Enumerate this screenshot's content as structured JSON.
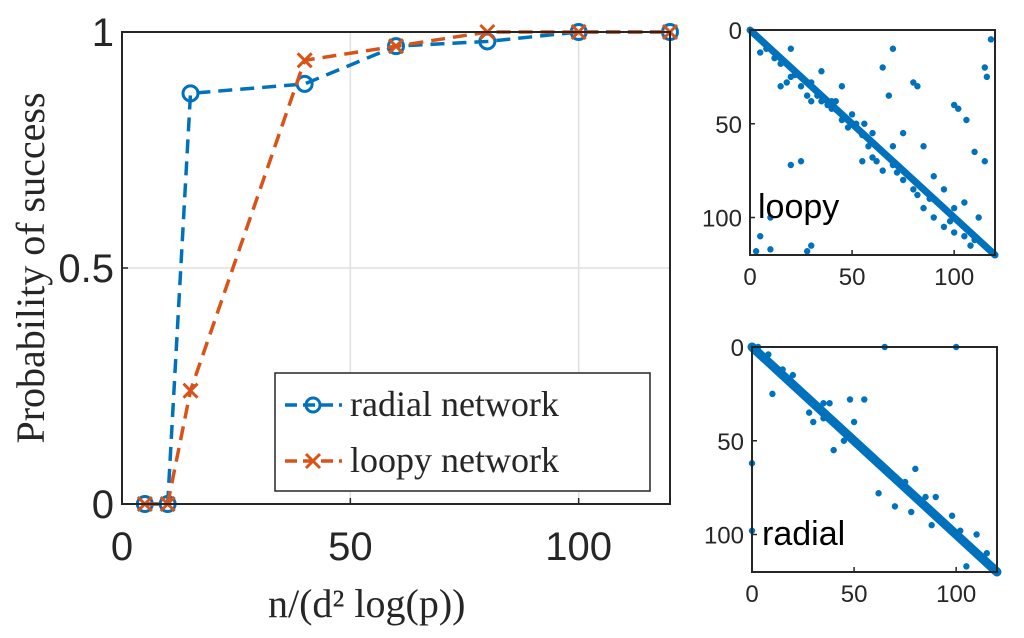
{
  "chart_data": [
    {
      "id": "main",
      "type": "line",
      "xlabel": "n/(d² log(p))",
      "ylabel": "Probability of success",
      "xlim": [
        0,
        120
      ],
      "ylim": [
        0,
        1
      ],
      "xticks": [
        0,
        50,
        100
      ],
      "yticks": [
        0,
        0.5,
        1
      ],
      "xtick_labels": [
        "0",
        "50",
        "100"
      ],
      "ytick_labels": [
        "0",
        "0.5",
        "1"
      ],
      "grid": true,
      "legend_position": "bottom-right",
      "series": [
        {
          "name": "radial network",
          "color": "#0072BD",
          "marker": "circle",
          "line_style": "dashed",
          "x": [
            5,
            10,
            15,
            40,
            60,
            80,
            100,
            120
          ],
          "y": [
            0,
            0,
            0.87,
            0.89,
            0.97,
            0.98,
            1.0,
            1.0
          ]
        },
        {
          "name": "loopy network",
          "color": "#D95319",
          "marker": "x",
          "line_style": "dashed",
          "x": [
            5,
            10,
            15,
            40,
            60,
            80,
            100,
            120
          ],
          "y": [
            0,
            0,
            0.24,
            0.94,
            0.97,
            1.0,
            1.0,
            1.0
          ]
        }
      ]
    },
    {
      "id": "loopy-spy",
      "type": "scatter",
      "annotation": "loopy",
      "color": "#0072BD",
      "xlim": [
        0,
        120
      ],
      "ylim": [
        120,
        0
      ],
      "xticks": [
        0,
        50,
        100
      ],
      "yticks": [
        0,
        50,
        100
      ],
      "xtick_labels": [
        "0",
        "50",
        "100"
      ],
      "ytick_labels": [
        "0",
        "50",
        "100"
      ],
      "diagonal": true,
      "points": [
        [
          8,
          10
        ],
        [
          12,
          15
        ],
        [
          15,
          18
        ],
        [
          18,
          28
        ],
        [
          22,
          24
        ],
        [
          25,
          30
        ],
        [
          30,
          28
        ],
        [
          33,
          35
        ],
        [
          35,
          38
        ],
        [
          38,
          40
        ],
        [
          40,
          42
        ],
        [
          42,
          38
        ],
        [
          45,
          48
        ],
        [
          48,
          52
        ],
        [
          52,
          50
        ],
        [
          55,
          56
        ],
        [
          58,
          62
        ],
        [
          60,
          68
        ],
        [
          62,
          70
        ],
        [
          65,
          75
        ],
        [
          70,
          72
        ],
        [
          72,
          76
        ],
        [
          75,
          80
        ],
        [
          80,
          85
        ],
        [
          82,
          88
        ],
        [
          85,
          95
        ],
        [
          88,
          90
        ],
        [
          90,
          100
        ],
        [
          95,
          105
        ],
        [
          98,
          102
        ],
        [
          100,
          108
        ],
        [
          105,
          110
        ],
        [
          108,
          115
        ],
        [
          110,
          112
        ],
        [
          56,
          50
        ],
        [
          60,
          55
        ],
        [
          28,
          35
        ],
        [
          40,
          38
        ],
        [
          70,
          62
        ],
        [
          15,
          30
        ],
        [
          5,
          12
        ],
        [
          20,
          10
        ],
        [
          20,
          25
        ],
        [
          30,
          38
        ],
        [
          10,
          100
        ],
        [
          28,
          118
        ],
        [
          30,
          115
        ],
        [
          65,
          20
        ],
        [
          70,
          10
        ],
        [
          80,
          28
        ],
        [
          82,
          30
        ],
        [
          100,
          40
        ],
        [
          102,
          42
        ],
        [
          115,
          20
        ],
        [
          116,
          25
        ],
        [
          105,
          92
        ],
        [
          110,
          65
        ],
        [
          118,
          5
        ],
        [
          115,
          70
        ],
        [
          45,
          30
        ],
        [
          35,
          22
        ],
        [
          50,
          45
        ],
        [
          90,
          78
        ],
        [
          5,
          110
        ],
        [
          3,
          118
        ],
        [
          10,
          117
        ],
        [
          20,
          72
        ],
        [
          25,
          70
        ],
        [
          55,
          70
        ],
        [
          68,
          35
        ],
        [
          75,
          55
        ],
        [
          85,
          62
        ],
        [
          95,
          85
        ],
        [
          100,
          95
        ],
        [
          112,
          100
        ],
        [
          106,
          48
        ]
      ]
    },
    {
      "id": "radial-spy",
      "type": "scatter",
      "annotation": "radial",
      "color": "#0072BD",
      "xlim": [
        0,
        120
      ],
      "ylim": [
        120,
        0
      ],
      "xticks": [
        0,
        50,
        100
      ],
      "yticks": [
        0,
        50,
        100
      ],
      "xtick_labels": [
        "0",
        "50",
        "100"
      ],
      "ytick_labels": [
        "0",
        "50",
        "100"
      ],
      "diagonal": true,
      "points": [
        [
          3,
          0
        ],
        [
          65,
          0
        ],
        [
          100,
          0
        ],
        [
          10,
          25
        ],
        [
          20,
          15
        ],
        [
          25,
          25
        ],
        [
          30,
          40
        ],
        [
          32,
          32
        ],
        [
          35,
          30
        ],
        [
          35,
          38
        ],
        [
          38,
          30
        ],
        [
          48,
          28
        ],
        [
          55,
          28
        ],
        [
          50,
          40
        ],
        [
          40,
          55
        ],
        [
          45,
          50
        ],
        [
          0,
          62
        ],
        [
          0,
          98
        ],
        [
          62,
          78
        ],
        [
          70,
          85
        ],
        [
          80,
          65
        ],
        [
          75,
          72
        ],
        [
          85,
          80
        ],
        [
          88,
          95
        ],
        [
          90,
          80
        ],
        [
          98,
          90
        ],
        [
          110,
          100
        ],
        [
          115,
          110
        ],
        [
          105,
          117
        ],
        [
          8,
          4
        ],
        [
          15,
          12
        ],
        [
          18,
          18
        ],
        [
          28,
          35
        ],
        [
          55,
          55
        ],
        [
          78,
          88
        ],
        [
          102,
          98
        ]
      ]
    }
  ]
}
